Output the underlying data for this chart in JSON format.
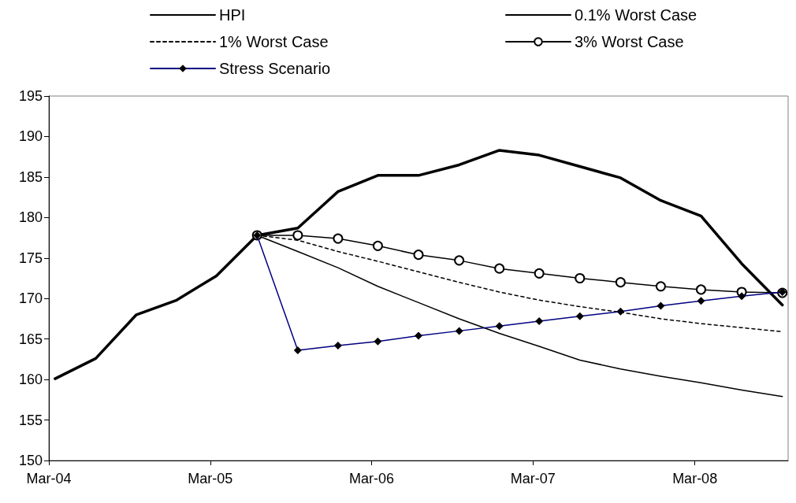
{
  "chart_data": {
    "type": "line",
    "x": [
      "2004-03-15",
      "2004-06-15",
      "2004-09-15",
      "2004-12-15",
      "2005-03-15",
      "2005-06-15",
      "2005-09-15",
      "2005-12-15",
      "2006-03-15",
      "2006-06-15",
      "2006-09-15",
      "2006-12-15",
      "2007-03-15",
      "2007-06-15",
      "2007-09-15",
      "2007-12-15",
      "2008-03-15",
      "2008-06-15",
      "2008-09-15"
    ],
    "series": [
      {
        "name": "HPI",
        "color": "#000000",
        "line_style": "solid",
        "marker": "none",
        "values": [
          160.1,
          162.6,
          168.0,
          169.8,
          172.8,
          177.8,
          178.7,
          183.2,
          185.2,
          185.2,
          186.5,
          188.3,
          187.7,
          186.3,
          184.9,
          182.1,
          180.2,
          174.3,
          169.2
        ]
      },
      {
        "name": "0.1% Worst Case",
        "color": "#000000",
        "line_style": "solid",
        "marker": "none",
        "values": [
          null,
          null,
          null,
          null,
          null,
          177.8,
          175.8,
          173.8,
          171.5,
          169.5,
          167.5,
          165.7,
          164.1,
          162.4,
          161.3,
          160.4,
          159.6,
          158.7,
          157.9
        ]
      },
      {
        "name": "1% Worst Case",
        "color": "#000000",
        "line_style": "dashed",
        "marker": "none",
        "values": [
          null,
          null,
          null,
          null,
          null,
          177.8,
          177.2,
          175.8,
          174.6,
          173.3,
          172.0,
          170.8,
          169.8,
          169.0,
          168.3,
          167.5,
          166.9,
          166.4,
          165.9
        ]
      },
      {
        "name": "3% Worst Case",
        "color": "#000000",
        "line_style": "solid",
        "marker": "circle",
        "values": [
          null,
          null,
          null,
          null,
          null,
          177.8,
          177.8,
          177.4,
          176.5,
          175.4,
          174.7,
          173.7,
          173.1,
          172.5,
          172.0,
          171.5,
          171.1,
          170.8,
          170.7
        ]
      },
      {
        "name": "Stress Scenario",
        "color": "#000080",
        "line_style": "solid",
        "marker": "diamond",
        "values": [
          null,
          null,
          null,
          null,
          null,
          177.8,
          163.6,
          164.2,
          164.7,
          165.4,
          166.0,
          166.6,
          167.2,
          167.8,
          168.4,
          169.1,
          169.7,
          170.3,
          170.8
        ]
      }
    ],
    "xlim": [
      "2004-03-01",
      "2008-09-28"
    ],
    "xticks": [
      {
        "value": "2004-03-01",
        "label": "Mar-04"
      },
      {
        "value": "2005-03-01",
        "label": "Mar-05"
      },
      {
        "value": "2006-03-01",
        "label": "Mar-06"
      },
      {
        "value": "2007-03-01",
        "label": "Mar-07"
      },
      {
        "value": "2008-03-01",
        "label": "Mar-08"
      }
    ],
    "ylim": [
      150,
      195
    ],
    "yticks": [
      150,
      155,
      160,
      165,
      170,
      175,
      180,
      185,
      190,
      195
    ],
    "grid": false,
    "legend": "top"
  }
}
